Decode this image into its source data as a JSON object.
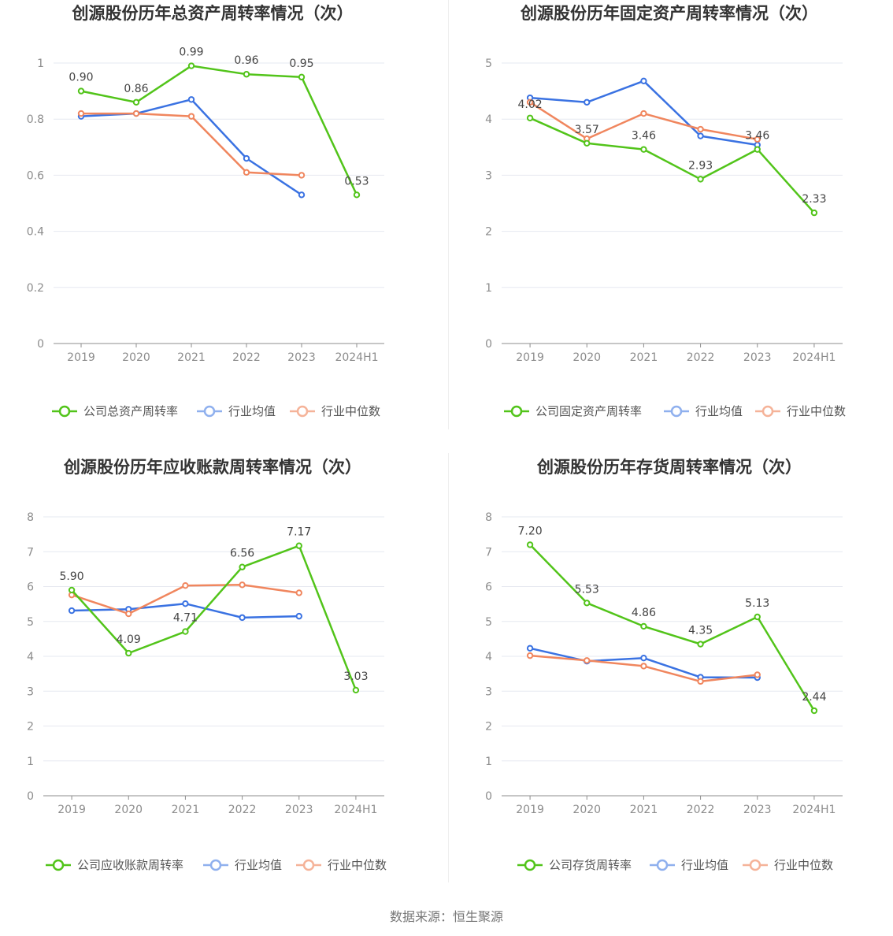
{
  "source_label": "数据来源：恒生聚源",
  "colors": {
    "company": "#52c41a",
    "avg": "#3a72e2",
    "median": "#f0865e",
    "avg_legend": "#8fb0ee",
    "median_legend": "#f5b399",
    "grid": "#e6e8f0",
    "axis": "#8c8c8c"
  },
  "chart_data": [
    {
      "type": "line",
      "title": "创源股份历年总资产周转率情况（次）",
      "categories": [
        "2019",
        "2020",
        "2021",
        "2022",
        "2023",
        "2024H1"
      ],
      "ylim": [
        0,
        1
      ],
      "yticks": [
        0,
        0.2,
        0.4,
        0.6,
        0.8,
        1
      ],
      "ytick_labels": [
        "0",
        "0.2",
        "0.4",
        "0.6",
        "0.8",
        "1"
      ],
      "grid": true,
      "legend_position": "bottom",
      "series": [
        {
          "name": "公司总资产周转率",
          "role": "company",
          "values": [
            0.9,
            0.86,
            0.99,
            0.96,
            0.95,
            0.53
          ],
          "labels": [
            "0.90",
            "0.86",
            "0.99",
            "0.96",
            "0.95",
            "0.53"
          ]
        },
        {
          "name": "行业均值",
          "role": "avg",
          "values": [
            0.81,
            0.82,
            0.87,
            0.66,
            0.53,
            null
          ]
        },
        {
          "name": "行业中位数",
          "role": "median",
          "values": [
            0.82,
            0.82,
            0.81,
            0.61,
            0.6,
            null
          ]
        }
      ]
    },
    {
      "type": "line",
      "title": "创源股份历年固定资产周转率情况（次）",
      "categories": [
        "2019",
        "2020",
        "2021",
        "2022",
        "2023",
        "2024H1"
      ],
      "ylim": [
        0,
        5
      ],
      "yticks": [
        0,
        1,
        2,
        3,
        4,
        5
      ],
      "ytick_labels": [
        "0",
        "1",
        "2",
        "3",
        "4",
        "5"
      ],
      "grid": true,
      "legend_position": "bottom",
      "series": [
        {
          "name": "公司固定资产周转率",
          "role": "company",
          "values": [
            4.02,
            3.57,
            3.46,
            2.93,
            3.46,
            2.33
          ],
          "labels": [
            "4.02",
            "3.57",
            "3.46",
            "2.93",
            "3.46",
            "2.33"
          ]
        },
        {
          "name": "行业均值",
          "role": "avg",
          "values": [
            4.38,
            4.3,
            4.68,
            3.7,
            3.54,
            null
          ]
        },
        {
          "name": "行业中位数",
          "role": "median",
          "values": [
            4.3,
            3.65,
            4.1,
            3.82,
            3.64,
            null
          ]
        }
      ]
    },
    {
      "type": "line",
      "title": "创源股份历年应收账款周转率情况（次）",
      "categories": [
        "2019",
        "2020",
        "2021",
        "2022",
        "2023",
        "2024H1"
      ],
      "ylim": [
        0,
        8
      ],
      "yticks": [
        0,
        1,
        2,
        3,
        4,
        5,
        6,
        7,
        8
      ],
      "ytick_labels": [
        "0",
        "1",
        "2",
        "3",
        "4",
        "5",
        "6",
        "7",
        "8"
      ],
      "grid": true,
      "legend_position": "bottom",
      "series": [
        {
          "name": "公司应收账款周转率",
          "role": "company",
          "values": [
            5.9,
            4.09,
            4.71,
            6.56,
            7.17,
            3.03
          ],
          "labels": [
            "5.90",
            "4.09",
            "4.71",
            "6.56",
            "7.17",
            "3.03"
          ]
        },
        {
          "name": "行业均值",
          "role": "avg",
          "values": [
            5.31,
            5.35,
            5.51,
            5.11,
            5.15,
            null
          ]
        },
        {
          "name": "行业中位数",
          "role": "median",
          "values": [
            5.76,
            5.22,
            6.03,
            6.05,
            5.82,
            null
          ]
        }
      ]
    },
    {
      "type": "line",
      "title": "创源股份历年存货周转率情况（次）",
      "categories": [
        "2019",
        "2020",
        "2021",
        "2022",
        "2023",
        "2024H1"
      ],
      "ylim": [
        0,
        8
      ],
      "yticks": [
        0,
        1,
        2,
        3,
        4,
        5,
        6,
        7,
        8
      ],
      "ytick_labels": [
        "0",
        "1",
        "2",
        "3",
        "4",
        "5",
        "6",
        "7",
        "8"
      ],
      "grid": true,
      "legend_position": "bottom",
      "series": [
        {
          "name": "公司存货周转率",
          "role": "company",
          "values": [
            7.2,
            5.53,
            4.86,
            4.35,
            5.13,
            2.44
          ],
          "labels": [
            "7.20",
            "5.53",
            "4.86",
            "4.35",
            "5.13",
            "2.44"
          ]
        },
        {
          "name": "行业均值",
          "role": "avg",
          "values": [
            4.23,
            3.86,
            3.95,
            3.4,
            3.39,
            null
          ]
        },
        {
          "name": "行业中位数",
          "role": "median",
          "values": [
            4.02,
            3.88,
            3.72,
            3.28,
            3.47,
            null
          ]
        }
      ]
    }
  ]
}
